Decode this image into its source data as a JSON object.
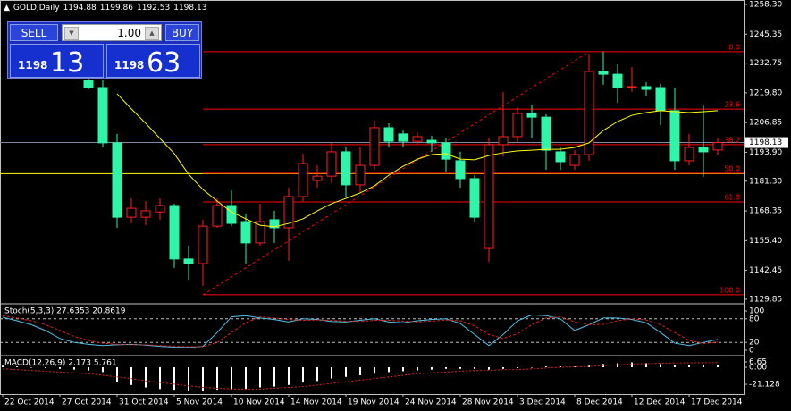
{
  "header": {
    "symbol": "GOLD,Daily",
    "ohlc": [
      1194.88,
      1199.86,
      1192.53,
      1198.13
    ]
  },
  "trade_panel": {
    "sell": "SELL",
    "lots": "1.00",
    "buy": "BUY",
    "bid_big": "1198",
    "bid_small": "13",
    "ask_big": "1198",
    "ask_small": "63"
  },
  "chart_data": [
    {
      "type": "candlestick",
      "categories": [
        "22 Oct 2014",
        null,
        null,
        null,
        "27 Oct 2014",
        null,
        null,
        null,
        "31 Oct 2014",
        null,
        null,
        null,
        "5 Nov 2014",
        null,
        null,
        null,
        "10 Nov 2014",
        null,
        null,
        null,
        "14 Nov 2014",
        null,
        null,
        null,
        "19 Nov 2014",
        null,
        null,
        null,
        "24 Nov 2014",
        null,
        null,
        null,
        "28 Nov 2014",
        null,
        null,
        null,
        "3 Dec 2014",
        null,
        null,
        null,
        "8 Dec 2014",
        null,
        null,
        null,
        "12 Dec 2014",
        null,
        null,
        null,
        "17 Dec 2014",
        null,
        null
      ],
      "open": [
        null,
        null,
        null,
        null,
        null,
        null,
        1225.2,
        1222.1,
        1198.0,
        1165.6,
        1165.6,
        1167.9,
        1170.7,
        1147.4,
        1145.4,
        1161.7,
        1170.7,
        1163.7,
        1154.4,
        1164.5,
        1161.0,
        1174.6,
        1181.6,
        1183.5,
        1194.1,
        1179.7,
        1188.2,
        1204.6,
        1201.9,
        1198.7,
        1199.1,
        1198.0,
        1190.2,
        1182.4,
        1152.0,
        1197.2,
        1200.7,
        1210.8,
        1209.2,
        1194.1,
        1188.2,
        1192.9,
        1229.1,
        1227.9,
        1222.1,
        1222.5,
        1222.1,
        1212.0,
        1190.2,
        1196.0,
        1194.88
      ],
      "high": [
        null,
        null,
        null,
        null,
        null,
        null,
        1227.2,
        1225.2,
        1201.9,
        1173.8,
        1172.6,
        1173.8,
        1171.5,
        1153.2,
        1164.5,
        1173.8,
        1177.3,
        1166.8,
        1171.5,
        1168.4,
        1178.5,
        1193.3,
        1188.2,
        1198.0,
        1196.0,
        1196.0,
        1207.7,
        1206.5,
        1203.8,
        1202.6,
        1201.1,
        1199.9,
        1194.1,
        1183.9,
        1199.9,
        1220.2,
        1213.5,
        1214.3,
        1210.4,
        1196.0,
        1194.8,
        1236.9,
        1237.7,
        1232.2,
        1231.0,
        1224.4,
        1223.7,
        1222.1,
        1201.9,
        1214.3,
        1199.86
      ],
      "low": [
        null,
        null,
        null,
        null,
        null,
        null,
        1221.3,
        1196.0,
        1161.0,
        1162.9,
        1162.1,
        1164.5,
        1143.5,
        1138.4,
        1135.7,
        1161.0,
        1161.7,
        1145.4,
        1153.2,
        1154.4,
        1146.6,
        1172.6,
        1178.5,
        1180.4,
        1174.6,
        1176.5,
        1186.3,
        1196.0,
        1196.0,
        1197.2,
        1194.1,
        1185.5,
        1178.5,
        1163.7,
        1146.2,
        1192.1,
        1198.0,
        1199.9,
        1186.3,
        1186.3,
        1186.3,
        1190.2,
        1223.3,
        1215.5,
        1220.2,
        1218.2,
        1205.7,
        1186.3,
        1188.2,
        1183.2,
        1192.53
      ],
      "close": [
        null,
        null,
        null,
        null,
        null,
        null,
        1222.1,
        1198.0,
        1165.6,
        1169.5,
        1168.4,
        1170.7,
        1147.4,
        1145.4,
        1161.7,
        1170.7,
        1162.9,
        1154.4,
        1163.7,
        1161.0,
        1174.6,
        1189.0,
        1183.5,
        1194.1,
        1179.7,
        1188.2,
        1204.6,
        1198.7,
        1198.7,
        1200.7,
        1198.0,
        1190.9,
        1182.4,
        1165.6,
        1197.2,
        1200.7,
        1210.8,
        1209.2,
        1194.8,
        1189.8,
        1192.9,
        1229.1,
        1227.9,
        1222.1,
        1222.5,
        1221.3,
        1212.0,
        1190.2,
        1196.0,
        1194.1,
        1198.13
      ],
      "up_color": "#ff2020",
      "down_color": "#2ef5a8",
      "ma": {
        "color": "#ffff00",
        "values": [
          null,
          null,
          null,
          null,
          null,
          null,
          null,
          null,
          1219.4,
          1212.8,
          1206.5,
          1199.9,
          1193.3,
          1184.3,
          1177.7,
          1172.6,
          1167.9,
          1164.9,
          1162.1,
          1161.4,
          1162.9,
          1164.9,
          1168.4,
          1171.5,
          1173.8,
          1176.2,
          1179.3,
          1183.9,
          1187.8,
          1190.9,
          1192.9,
          1193.3,
          1190.9,
          1190.6,
          1192.5,
          1193.7,
          1194.5,
          1194.8,
          1195.2,
          1195.2,
          1196.0,
          1198.0,
          1203.4,
          1207.3,
          1210.0,
          1211.2,
          1212.0,
          1211.6,
          1211.2,
          1211.6,
          1212.0
        ]
      },
      "hline": {
        "value": 1184.6,
        "color": "#ffff00"
      },
      "last_price": 1198.13,
      "last_color": "#7f8aa8",
      "fibo": {
        "color": "#ff0000",
        "from": 14,
        "to": 41,
        "high": 1237.7,
        "low": 1131.8,
        "levels": [
          {
            "value": 0,
            "label": "0.0"
          },
          23.6,
          38.2,
          {
            "value": 50,
            "label": "50.0"
          },
          61.8,
          {
            "value": 100,
            "label": "100.0"
          }
        ]
      },
      "ylim": [
        1128.66,
        1260.25
      ],
      "yticks": [
        {
          "value": 1258.3,
          "label": "1258.30"
        },
        1245.35,
        1232.75,
        {
          "value": 1219.8,
          "label": "1219.80"
        },
        1206.85,
        {
          "value": 1193.9,
          "label": "1193.90"
        },
        {
          "value": 1181.3,
          "label": "1181.30"
        },
        1168.35,
        {
          "value": 1155.4,
          "label": "1155.40"
        },
        1142.45,
        1129.85
      ]
    },
    {
      "type": "stochastic",
      "title": "Stoch(5,3,3) 27.6353 20.8619",
      "series": [
        {
          "color": "#4fc3e8",
          "dash": false,
          "values": [
            84,
            75,
            65,
            50,
            30,
            20,
            15,
            12,
            14,
            15,
            13,
            10,
            8,
            7,
            10,
            45,
            85,
            88,
            82,
            78,
            72,
            80,
            78,
            73,
            72,
            76,
            80,
            72,
            70,
            75,
            78,
            80,
            68,
            40,
            12,
            40,
            75,
            90,
            88,
            80,
            50,
            65,
            82,
            82,
            78,
            70,
            45,
            18,
            12,
            20,
            27.6353
          ]
        },
        {
          "color": "#e0201a",
          "dash": true,
          "values": [
            88,
            82,
            75,
            65,
            50,
            35,
            25,
            18,
            15,
            14,
            14,
            12,
            10,
            9,
            9,
            20,
            45,
            70,
            85,
            82,
            78,
            76,
            77,
            76,
            74,
            73,
            76,
            76,
            74,
            72,
            74,
            77,
            75,
            62,
            40,
            30,
            42,
            65,
            82,
            85,
            72,
            65,
            66,
            75,
            80,
            77,
            65,
            45,
            25,
            17,
            20.8619
          ]
        }
      ],
      "levels": [
        80,
        20
      ],
      "ylim": [
        -9.1,
        115.9
      ],
      "yticks": [
        100,
        80,
        20,
        0
      ]
    },
    {
      "type": "macd",
      "title": "MACD(12,26,9) 2.173 5.761",
      "histogram": {
        "color": "#ffffff",
        "values": [
          2,
          1,
          0,
          -1,
          -2,
          -3,
          -4,
          -6,
          -18,
          -22,
          -25,
          -27,
          -29,
          -30,
          -30,
          -29,
          -28,
          -27,
          -25,
          -24,
          -22,
          -19,
          -17,
          -14,
          -12,
          -10,
          -8,
          -6,
          -5,
          -4,
          -3,
          -2,
          -2,
          -2,
          -3,
          -2,
          -1,
          0,
          1,
          1,
          1,
          2,
          4,
          5,
          6,
          5,
          4,
          3,
          2.5,
          2.2,
          2.173
        ]
      },
      "signal": {
        "color": "#e0201a",
        "values": [
          -2,
          -3,
          -4,
          -5,
          -6,
          -7,
          -8,
          -10,
          -12,
          -14,
          -17,
          -19,
          -21,
          -23,
          -25,
          -26,
          -27,
          -27,
          -27,
          -26,
          -25,
          -24,
          -22,
          -20,
          -18,
          -16,
          -14,
          -12,
          -10,
          -8,
          -7,
          -6,
          -5,
          -4,
          -4,
          -3,
          -3,
          -2,
          -1,
          0,
          0.5,
          1,
          2,
          3,
          4,
          4.5,
          5,
          5.3,
          5.5,
          5.7,
          5.761
        ]
      },
      "ylim": [
        -33.3,
        13.3
      ],
      "yticks": [
        6.65,
        {
          "value": 0,
          "label": "0.00"
        },
        -21.128
      ]
    }
  ]
}
